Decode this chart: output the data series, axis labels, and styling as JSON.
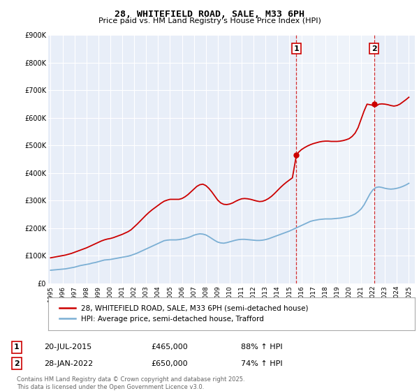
{
  "title": "28, WHITEFIELD ROAD, SALE, M33 6PH",
  "subtitle": "Price paid vs. HM Land Registry's House Price Index (HPI)",
  "ylim": [
    0,
    900000
  ],
  "yticks": [
    0,
    100000,
    200000,
    300000,
    400000,
    500000,
    600000,
    700000,
    800000,
    900000
  ],
  "red_color": "#cc0000",
  "blue_color": "#7bafd4",
  "background_color": "#e8eef8",
  "marker1_date": "20-JUL-2015",
  "marker1_price": 465000,
  "marker1_hpi_pct": "88% ↑ HPI",
  "marker2_date": "28-JAN-2022",
  "marker2_price": 650000,
  "marker2_hpi_pct": "74% ↑ HPI",
  "legend_line1": "28, WHITEFIELD ROAD, SALE, M33 6PH (semi-detached house)",
  "legend_line2": "HPI: Average price, semi-detached house, Trafford",
  "footer": "Contains HM Land Registry data © Crown copyright and database right 2025.\nThis data is licensed under the Open Government Licence v3.0.",
  "hpi_years": [
    1995,
    1995.25,
    1995.5,
    1995.75,
    1996,
    1996.25,
    1996.5,
    1996.75,
    1997,
    1997.25,
    1997.5,
    1997.75,
    1998,
    1998.25,
    1998.5,
    1998.75,
    1999,
    1999.25,
    1999.5,
    1999.75,
    2000,
    2000.25,
    2000.5,
    2000.75,
    2001,
    2001.25,
    2001.5,
    2001.75,
    2002,
    2002.25,
    2002.5,
    2002.75,
    2003,
    2003.25,
    2003.5,
    2003.75,
    2004,
    2004.25,
    2004.5,
    2004.75,
    2005,
    2005.25,
    2005.5,
    2005.75,
    2006,
    2006.25,
    2006.5,
    2006.75,
    2007,
    2007.25,
    2007.5,
    2007.75,
    2008,
    2008.25,
    2008.5,
    2008.75,
    2009,
    2009.25,
    2009.5,
    2009.75,
    2010,
    2010.25,
    2010.5,
    2010.75,
    2011,
    2011.25,
    2011.5,
    2011.75,
    2012,
    2012.25,
    2012.5,
    2012.75,
    2013,
    2013.25,
    2013.5,
    2013.75,
    2014,
    2014.25,
    2014.5,
    2014.75,
    2015,
    2015.25,
    2015.5,
    2015.75,
    2016,
    2016.25,
    2016.5,
    2016.75,
    2017,
    2017.25,
    2017.5,
    2017.75,
    2018,
    2018.25,
    2018.5,
    2018.75,
    2019,
    2019.25,
    2019.5,
    2019.75,
    2020,
    2020.25,
    2020.5,
    2020.75,
    2021,
    2021.25,
    2021.5,
    2021.75,
    2022,
    2022.25,
    2022.5,
    2022.75,
    2023,
    2023.25,
    2023.5,
    2023.75,
    2024,
    2024.25,
    2024.5,
    2024.75,
    2025
  ],
  "hpi_values": [
    48000,
    49000,
    50000,
    51000,
    52000,
    53000,
    55000,
    57000,
    59000,
    62000,
    65000,
    67000,
    69000,
    71000,
    74000,
    76000,
    79000,
    82000,
    85000,
    86000,
    87000,
    89000,
    91000,
    93000,
    95000,
    97000,
    99000,
    102000,
    106000,
    110000,
    115000,
    120000,
    125000,
    130000,
    135000,
    140000,
    145000,
    150000,
    155000,
    157000,
    158000,
    158000,
    158000,
    159000,
    161000,
    163000,
    166000,
    170000,
    175000,
    178000,
    180000,
    179000,
    176000,
    170000,
    163000,
    156000,
    150000,
    147000,
    146000,
    148000,
    151000,
    154000,
    157000,
    159000,
    160000,
    160000,
    159000,
    158000,
    157000,
    156000,
    156000,
    157000,
    159000,
    162000,
    166000,
    170000,
    174000,
    178000,
    182000,
    186000,
    190000,
    195000,
    200000,
    205000,
    210000,
    215000,
    220000,
    225000,
    228000,
    230000,
    232000,
    233000,
    234000,
    234000,
    234000,
    235000,
    236000,
    237000,
    239000,
    241000,
    243000,
    247000,
    252000,
    260000,
    270000,
    285000,
    305000,
    325000,
    340000,
    348000,
    350000,
    348000,
    345000,
    343000,
    342000,
    343000,
    345000,
    348000,
    352000,
    357000,
    363000
  ],
  "red_years": [
    1995,
    1995.25,
    1995.5,
    1995.75,
    1996,
    1996.25,
    1996.5,
    1996.75,
    1997,
    1997.25,
    1997.5,
    1997.75,
    1998,
    1998.25,
    1998.5,
    1998.75,
    1999,
    1999.25,
    1999.5,
    1999.75,
    2000,
    2000.25,
    2000.5,
    2000.75,
    2001,
    2001.25,
    2001.5,
    2001.75,
    2002,
    2002.25,
    2002.5,
    2002.75,
    2003,
    2003.25,
    2003.5,
    2003.75,
    2004,
    2004.25,
    2004.5,
    2004.75,
    2005,
    2005.25,
    2005.5,
    2005.75,
    2006,
    2006.25,
    2006.5,
    2006.75,
    2007,
    2007.25,
    2007.5,
    2007.75,
    2008,
    2008.25,
    2008.5,
    2008.75,
    2009,
    2009.25,
    2009.5,
    2009.75,
    2010,
    2010.25,
    2010.5,
    2010.75,
    2011,
    2011.25,
    2011.5,
    2011.75,
    2012,
    2012.25,
    2012.5,
    2012.75,
    2013,
    2013.25,
    2013.5,
    2013.75,
    2014,
    2014.25,
    2014.5,
    2014.75,
    2015,
    2015.25,
    2015.583,
    2015.75,
    2016,
    2016.25,
    2016.5,
    2016.75,
    2017,
    2017.25,
    2017.5,
    2017.75,
    2018,
    2018.25,
    2018.5,
    2018.75,
    2019,
    2019.25,
    2019.5,
    2019.75,
    2020,
    2020.25,
    2020.5,
    2020.75,
    2021,
    2021.25,
    2021.5,
    2021.75,
    2022.083,
    2022.25,
    2022.5,
    2022.75,
    2023,
    2023.25,
    2023.5,
    2023.75,
    2024,
    2024.25,
    2024.5,
    2024.75,
    2025
  ],
  "red_values": [
    93000,
    95000,
    97000,
    99000,
    101000,
    103000,
    106000,
    109000,
    113000,
    117000,
    121000,
    125000,
    129000,
    134000,
    139000,
    144000,
    149000,
    154000,
    158000,
    161000,
    163000,
    166000,
    170000,
    174000,
    178000,
    183000,
    188000,
    195000,
    205000,
    215000,
    226000,
    237000,
    248000,
    258000,
    267000,
    275000,
    283000,
    291000,
    298000,
    302000,
    305000,
    305000,
    305000,
    305000,
    308000,
    314000,
    322000,
    332000,
    342000,
    352000,
    358000,
    360000,
    355000,
    345000,
    332000,
    317000,
    302000,
    292000,
    287000,
    286000,
    288000,
    292000,
    298000,
    303000,
    307000,
    308000,
    307000,
    305000,
    302000,
    299000,
    297000,
    298000,
    302000,
    308000,
    316000,
    326000,
    337000,
    348000,
    358000,
    367000,
    375000,
    383000,
    465000,
    475000,
    485000,
    492000,
    498000,
    503000,
    507000,
    510000,
    513000,
    515000,
    516000,
    516000,
    515000,
    515000,
    515000,
    516000,
    518000,
    521000,
    525000,
    533000,
    545000,
    565000,
    595000,
    625000,
    650000,
    648000,
    645000,
    643000,
    650000,
    651000,
    650000,
    648000,
    645000,
    643000,
    645000,
    650000,
    658000,
    666000,
    675000
  ],
  "marker1_x": 2015.583,
  "marker2_x": 2022.083,
  "xlim_left": 1994.8,
  "xlim_right": 2025.5
}
